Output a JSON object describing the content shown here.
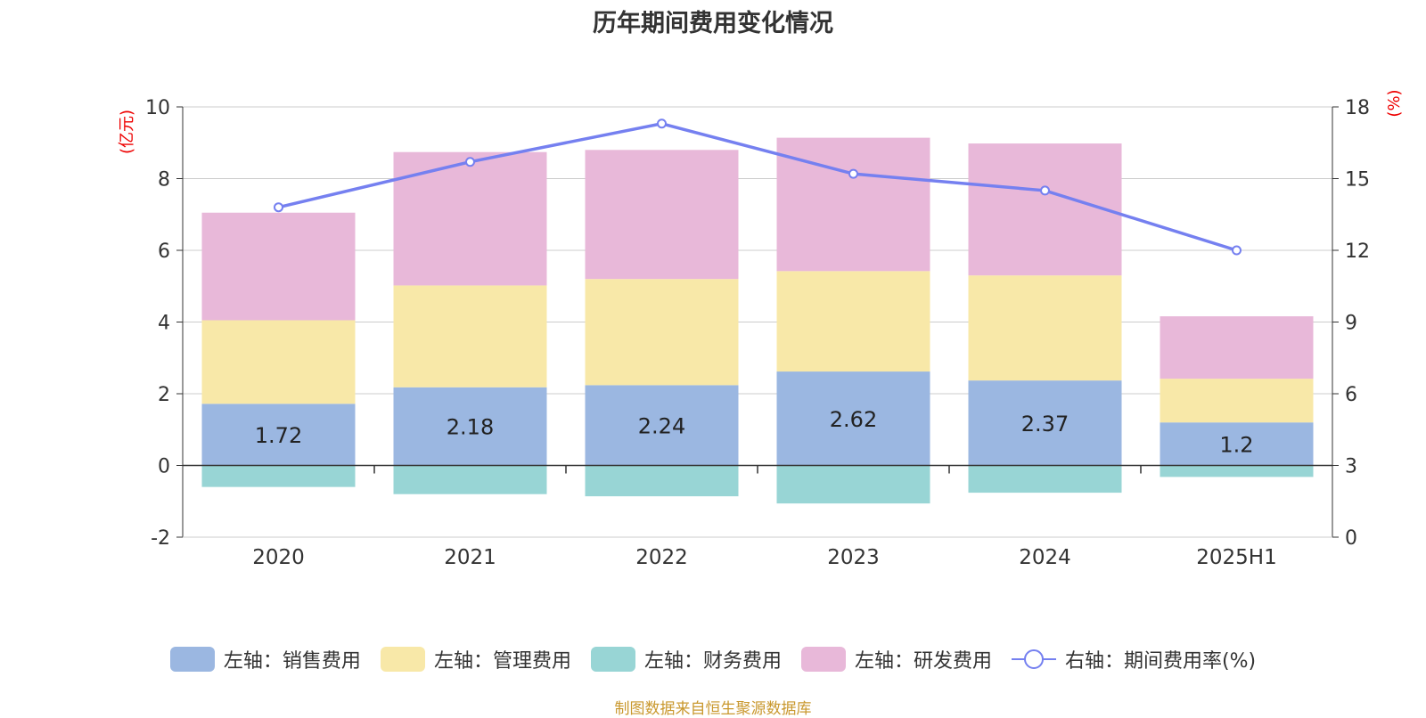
{
  "title": "历年期间费用变化情况",
  "source": "制图数据来自恒生聚源数据库",
  "chart_data": {
    "type": "bar",
    "stacked": true,
    "categories": [
      "2020",
      "2021",
      "2022",
      "2023",
      "2024",
      "2025H1"
    ],
    "left_axis": {
      "unit_label": "(亿元)",
      "ylim": [
        -2,
        10
      ],
      "ticks": [
        10,
        8,
        6,
        4,
        2,
        0,
        -2
      ]
    },
    "right_axis": {
      "unit_label": "(%)",
      "ylim": [
        0,
        18
      ],
      "ticks": [
        18,
        15,
        12,
        9,
        6,
        3,
        0
      ]
    },
    "grid": true,
    "legend_position": "bottom",
    "series": [
      {
        "name": "左轴：销售费用",
        "axis": "left",
        "type": "bar",
        "color": "#9bb7e1",
        "values": [
          1.72,
          2.18,
          2.24,
          2.62,
          2.37,
          1.2
        ],
        "labels": [
          "1.72",
          "2.18",
          "2.24",
          "2.62",
          "2.37",
          "1.2"
        ]
      },
      {
        "name": "左轴：管理费用",
        "axis": "left",
        "type": "bar",
        "color": "#f8e8a8",
        "values": [
          2.33,
          2.84,
          2.96,
          2.8,
          2.93,
          1.22
        ]
      },
      {
        "name": "左轴：财务费用",
        "axis": "left",
        "type": "bar",
        "color": "#98d5d5",
        "values": [
          -0.6,
          -0.8,
          -0.86,
          -1.06,
          -0.76,
          -0.32
        ]
      },
      {
        "name": "左轴：研发费用",
        "axis": "left",
        "type": "bar",
        "color": "#e8b8d9",
        "values": [
          3.0,
          3.72,
          3.6,
          3.72,
          3.68,
          1.74
        ]
      },
      {
        "name": "右轴：期间费用率(%)",
        "axis": "right",
        "type": "line",
        "color": "#7580f0",
        "values": [
          13.8,
          15.7,
          17.3,
          15.2,
          14.5,
          12.0
        ]
      }
    ]
  }
}
